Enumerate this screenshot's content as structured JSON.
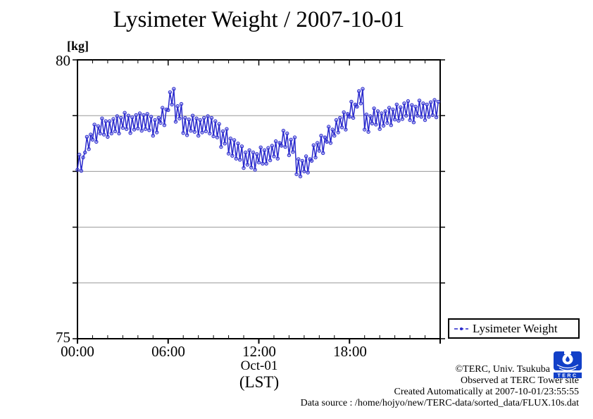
{
  "title": "Lysimeter Weight / 2007-10-01",
  "y_axis": {
    "unit_label": "[kg]",
    "top_label": "80",
    "bottom_label": "75"
  },
  "x_axis": {
    "tick_labels": [
      "00:00",
      "06:00",
      "12:00",
      "18:00"
    ],
    "date_label": "Oct-01",
    "timezone_label": "(LST)"
  },
  "legend": {
    "label": "Lysimeter Weight"
  },
  "credits": {
    "line1": "©TERC, Univ. Tsukuba",
    "line2": "Observed at TERC Tower site",
    "line3": "Created Automatically at 2007-10-01/23:55:55",
    "line4": "Data source : /home/hojyo/new/TERC-data/sorted_data/FLUX.10s.dat"
  },
  "logo": {
    "text": "TERC",
    "color": "#1240C8"
  },
  "colors": {
    "series": "#2828CC",
    "marker_fill": "rgba(110,110,230,0.40)",
    "grid": "#999999",
    "axis": "#000000"
  },
  "chart_data": {
    "type": "line",
    "title": "Lysimeter Weight / 2007-10-01",
    "series_name": "Lysimeter Weight",
    "ylabel": "[kg]",
    "xlabel": "Oct-01 (LST)",
    "ylim": [
      75,
      80
    ],
    "xlim_hours": [
      0,
      24
    ],
    "y_gridlines": [
      76,
      77,
      78,
      79
    ],
    "y_tick_values": [
      75,
      76,
      77,
      78,
      79,
      80
    ],
    "x_major_tick_hours": [
      0,
      6,
      12,
      18,
      24
    ],
    "x_minor_tick_interval_hours": 1,
    "grid": true,
    "legend_position": "outside-bottom-right",
    "t_start_hours": 0,
    "dt_hours": 0.125,
    "values": [
      78.03,
      78.3,
      78.01,
      78.25,
      78.34,
      78.62,
      78.4,
      78.66,
      78.57,
      78.84,
      78.53,
      78.81,
      78.68,
      78.95,
      78.66,
      78.9,
      78.62,
      78.9,
      78.68,
      78.94,
      78.72,
      78.99,
      78.68,
      78.96,
      78.78,
      79.05,
      78.76,
      79.0,
      78.69,
      78.97,
      78.75,
      79.01,
      78.77,
      79.04,
      78.73,
      79.01,
      78.76,
      79.03,
      78.74,
      78.98,
      78.64,
      78.92,
      78.7,
      78.96,
      78.87,
      79.14,
      78.83,
      79.11,
      79.1,
      79.42,
      79.2,
      79.48,
      78.89,
      79.17,
      78.95,
      79.21,
      78.69,
      78.96,
      78.65,
      78.93,
      78.73,
      79.0,
      78.71,
      78.95,
      78.64,
      78.92,
      78.7,
      78.96,
      78.72,
      78.99,
      78.68,
      78.96,
      78.63,
      78.9,
      78.61,
      78.85,
      78.44,
      78.72,
      78.5,
      78.76,
      78.32,
      78.59,
      78.28,
      78.56,
      78.23,
      78.5,
      78.21,
      78.45,
      78.06,
      78.34,
      78.12,
      78.38,
      78.07,
      78.34,
      78.03,
      78.31,
      78.16,
      78.43,
      78.14,
      78.38,
      78.14,
      78.42,
      78.2,
      78.46,
      78.27,
      78.54,
      78.23,
      78.51,
      78.46,
      78.73,
      78.44,
      78.68,
      78.29,
      78.57,
      78.35,
      78.61,
      77.95,
      78.22,
      77.91,
      78.19,
      78.0,
      78.27,
      77.98,
      78.22,
      78.19,
      78.47,
      78.25,
      78.51,
      78.37,
      78.64,
      78.33,
      78.61,
      78.53,
      78.8,
      78.51,
      78.75,
      78.64,
      78.92,
      78.7,
      78.96,
      78.79,
      79.06,
      78.75,
      79.03,
      78.98,
      79.25,
      78.96,
      79.2,
      79.16,
      79.44,
      79.22,
      79.48,
      78.75,
      79.02,
      78.71,
      78.99,
      78.86,
      79.13,
      78.84,
      79.08,
      78.76,
      79.04,
      78.82,
      79.08,
      78.87,
      79.14,
      78.83,
      79.11,
      78.93,
      79.2,
      78.91,
      79.15,
      78.94,
      79.22,
      79.0,
      79.26,
      78.92,
      79.19,
      78.88,
      79.16,
      79.0,
      79.27,
      78.98,
      79.22,
      78.92,
      79.2,
      78.98,
      79.24,
      79.01,
      79.28,
      78.97,
      79.25
    ]
  }
}
